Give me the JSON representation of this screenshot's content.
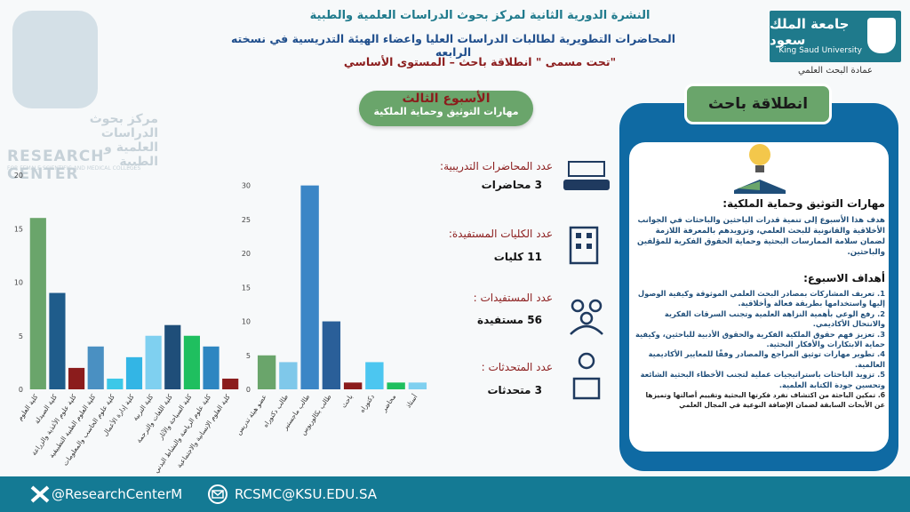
{
  "header": {
    "line1": "النشرة الدورية الثانية لمركز بحوث الدراسات العلمية والطبية",
    "line2": "المحاضرات التطويرية لطالبات الدراسات العليا واعضاء الهيئة التدريسية في نسخته الرابعه",
    "line3": "\"تحت مسمى \" انطلاقة باحث – المستوى الأساسي"
  },
  "logo": {
    "arabic": "جامعة الملك سعود",
    "english": "King Saud University",
    "deanship": "عمادة البحث العلمي"
  },
  "watermark": {
    "arabic": "مركز بحوث الدراسات العلمية و الطبية",
    "english": "RESEARCH CENTER",
    "subtitle": "FOR FEMALE SCIENTIFIC AND MEDICAL COLLEGES"
  },
  "week": {
    "title": "الأسبوع الثالث",
    "subtitle": "مهارات التوثيق وحماية الملكية"
  },
  "stats": [
    {
      "label": "عدد المحاضرات التدريبية:",
      "value": "3  محاضرات"
    },
    {
      "label": "عدد الكليات المستفيدة:",
      "value": "11 كليات"
    },
    {
      "label": "عدد المستفيدات :",
      "value": "56 مستفيدة"
    },
    {
      "label": "عدد المتحدثات :",
      "value": "3 متحدثات"
    }
  ],
  "panel": {
    "title": "انطلاقة باحث",
    "skill_heading": "مهارات التوثيق وحماية الملكية:",
    "skill_text": "هدف هذا الأسبوع إلى تنمية قدرات الباحثين والباحثات في الجوانب الأخلاقية والقانونية للبحث العلمي، وتزويدهم بالمعرفة اللازمة لضمان سلامة الممارسات البحثية وحماية الحقوق الفكرية للمؤلفين والباحثين.",
    "goals_heading": "أهداف الاسبوع:",
    "goals": [
      "1. تعريف المشاركات بمصادر البحث العلمي الموثوقة وكيفية الوصول إليها واستخدامها بطريقة فعالة وأخلاقية.",
      "2. رفع الوعي بأهمية النزاهة العلمية وتجنب السرقات الفكرية والانتحال الأكاديمي.",
      "3. تعزيز فهم حقوق الملكية الفكرية والحقوق الأدبية للباحثين، وكيفية حماية الابتكارات والأفكار البحثية.",
      "4. تطوير مهارات توثيق المراجع والمصادر وفقًا للمعايير الأكاديمية العالمية.",
      "5. تزويد الباحثات باستراتيجيات عملية لتجنب الأخطاء البحثية الشائعة وتحسين جودة الكتابة العلمية.",
      "6. تمكين الباحثة من اكتشاف تفرد فكرتها البحثية وتقييم أصالتها وتميزها عن الأبحاث السابقة لضمان الإضافة النوعية في المجال العلمي"
    ]
  },
  "footer": {
    "twitter": "@ResearchCenterM",
    "email": "RCSMC@KSU.EDU.SA"
  },
  "chart_data": [
    {
      "type": "bar",
      "categories": [
        "كلية العلوم",
        "كلية الصيدلة",
        "كلية علوم الأغذية والزراعة",
        "كلية العلوم الطبية التطبيقية",
        "كلية علوم الحاسب والمعلومات",
        "كلية إدارة الأعمال",
        "كلية التربية",
        "كلية اللغات والترجمة",
        "كلية السياحة والآثار",
        "كلية علوم الرياضة والنشاط البدني",
        "كلية العلوم الإنسانية والاجتماعية"
      ],
      "values": [
        16,
        9,
        2,
        4,
        1,
        3,
        5,
        6,
        5,
        4,
        1
      ],
      "colors": [
        "#6aa56b",
        "#1f5c8b",
        "#8b1c1c",
        "#4a90c2",
        "#3cc8e8",
        "#33b5e5",
        "#7fd0f0",
        "#1f4e79",
        "#1fbf5f",
        "#2e86c1",
        "#8b1c1c"
      ],
      "ylim": [
        0,
        20
      ],
      "yticks": [
        0,
        5,
        10,
        15,
        20
      ],
      "grid": false
    },
    {
      "type": "bar",
      "categories": [
        "عضو هيئة تدريس",
        "طالب دكتوراه",
        "طالب ماجستير",
        "طالب بكالوريوس",
        "باحث",
        "دكتوراه",
        "محاضر",
        "أستاذ"
      ],
      "values": [
        5,
        4,
        30,
        10,
        1,
        4,
        1,
        1
      ],
      "colors": [
        "#6aa56b",
        "#7fc8ea",
        "#3b86c6",
        "#2a5f99",
        "#8b1c1c",
        "#4cc6f0",
        "#1fbf5f",
        "#7fd0f0"
      ],
      "ylim": [
        0,
        31
      ],
      "yticks": [
        0,
        5,
        10,
        15,
        20,
        25,
        30
      ],
      "grid": false
    }
  ]
}
